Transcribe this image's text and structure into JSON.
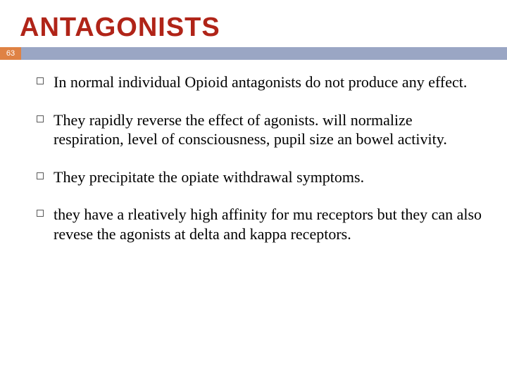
{
  "title": {
    "text": "ANTAGONISTS",
    "color": "#b02418",
    "fontsize": 38
  },
  "page_badge": {
    "number": "63",
    "bg": "#df8244"
  },
  "band": {
    "color": "#9aa6c4"
  },
  "body": {
    "fontsize": 22,
    "color": "#000000"
  },
  "bullets": [
    {
      "text": " In normal individual Opioid antagonists do not produce any effect."
    },
    {
      "text": "They rapidly reverse the effect of agonists. will normalize respiration, level of consciousness, pupil size an bowel activity."
    },
    {
      "text": "They precipitate the opiate withdrawal symptoms."
    },
    {
      "text": " they have a rleatively high affinity for mu receptors but they can also revese the agonists at delta and kappa receptors."
    }
  ]
}
